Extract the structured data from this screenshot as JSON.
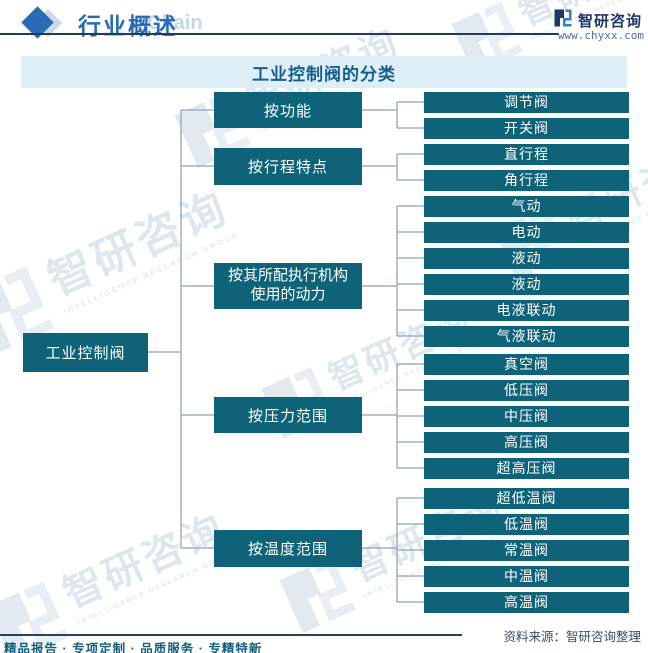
{
  "header": {
    "section_title": "行业概述",
    "watermark_text": "Chain",
    "brand_name": "智研咨询",
    "website": "www.chyxx.com"
  },
  "chart": {
    "title": "工业控制阀的分类",
    "root": "工业控制阀",
    "groups": [
      {
        "label": "按功能",
        "children": [
          "调节阀",
          "开关阀"
        ]
      },
      {
        "label": "按行程特点",
        "children": [
          "直行程",
          "角行程"
        ]
      },
      {
        "label": "按其所配执行机构使用的动力",
        "children": [
          "气动",
          "电动",
          "液动",
          "液动",
          "电液联动",
          "气液联动"
        ]
      },
      {
        "label": "按压力范围",
        "children": [
          "真空阀",
          "低压阀",
          "中压阀",
          "高压阀",
          "超高压阀"
        ]
      },
      {
        "label": "按温度范围",
        "children": [
          "超低温阀",
          "低温阀",
          "常温阀",
          "中温阀",
          "高温阀"
        ]
      }
    ]
  },
  "watermark": {
    "brand": "智研咨询",
    "subtext": "INTELLIGENCE RESEARCH GROUP"
  },
  "footer": {
    "tagline": "精品报告 · 专项定制 · 品质服务 · 专精特新",
    "source": "资料来源：智研咨询整理"
  },
  "colors": {
    "box_teal": "#0e6379",
    "accent_blue": "#2a6cb3",
    "title_bar_bg": "#deeef7",
    "connector": "#9db1bf"
  }
}
